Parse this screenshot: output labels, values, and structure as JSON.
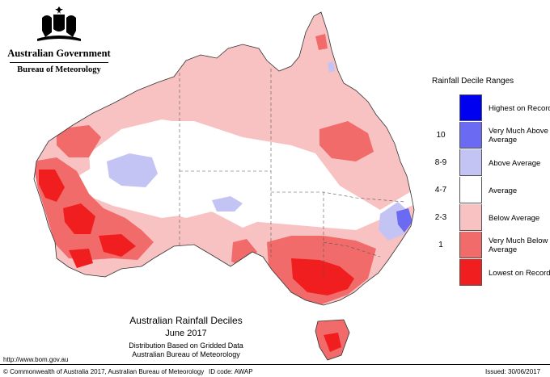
{
  "branding": {
    "agency": "Australian Government",
    "bureau": "Bureau of Meteorology"
  },
  "legend": {
    "title": "Rainfall Decile Ranges",
    "items": [
      {
        "range": "",
        "label": "Highest on Record",
        "color": "#0000f0"
      },
      {
        "range": "10",
        "label": "Very Much Above Average",
        "color": "#6a6af2"
      },
      {
        "range": "8-9",
        "label": "Above Average",
        "color": "#c4c4f4"
      },
      {
        "range": "4-7",
        "label": "Average",
        "color": "#ffffff"
      },
      {
        "range": "2-3",
        "label": "Below Average",
        "color": "#f9c2c2"
      },
      {
        "range": "1",
        "label": "Very Much Below Average",
        "color": "#f26b6b"
      },
      {
        "range": "",
        "label": "Lowest on Record",
        "color": "#f01e1e"
      }
    ]
  },
  "caption": {
    "title": "Australian Rainfall Deciles",
    "date": "June 2017",
    "line1": "Distribution Based on Gridded Data",
    "line2": "Australian Bureau of Meteorology"
  },
  "footer": {
    "url": "http://www.bom.gov.au",
    "copyright": "© Commonwealth of Australia 2017, Australian Bureau of Meteorology",
    "id_code": "ID code: AWAP",
    "issued": "Issued: 30/06/2017"
  }
}
